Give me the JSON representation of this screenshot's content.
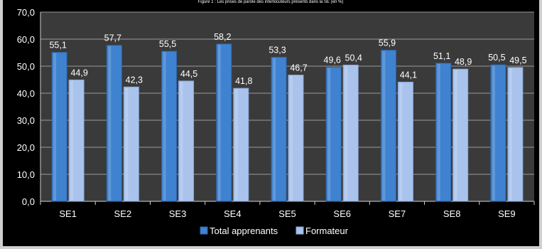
{
  "chart_data": {
    "type": "bar",
    "title": "Figure 1 : Les prises de parole des interlocuteurs présents dans la SE (en %)",
    "categories": [
      "SE1",
      "SE2",
      "SE3",
      "SE4",
      "SE5",
      "SE6",
      "SE7",
      "SE8",
      "SE9"
    ],
    "series": [
      {
        "name": "Total apprenants",
        "color": "#3f82d0",
        "values": [
          55.1,
          57.7,
          55.5,
          58.2,
          53.3,
          49.6,
          55.9,
          51.1,
          50.5
        ],
        "labels": [
          "55,1",
          "57,7",
          "55,5",
          "58,2",
          "53,3",
          "49,6",
          "55,9",
          "51,1",
          "50,5"
        ]
      },
      {
        "name": "Formateur",
        "color": "#a9c3ec",
        "values": [
          44.9,
          42.3,
          44.5,
          41.8,
          46.7,
          50.4,
          44.1,
          48.9,
          49.5
        ],
        "labels": [
          "44,9",
          "42,3",
          "44,5",
          "41,8",
          "46,7",
          "50,4",
          "44,1",
          "48,9",
          "49,5"
        ]
      }
    ],
    "xlabel": "",
    "ylabel": "",
    "ylim": [
      0,
      70
    ],
    "yticks": [
      "0,0",
      "10,0",
      "20,0",
      "30,0",
      "40,0",
      "50,0",
      "60,0",
      "70,0"
    ],
    "grid": true,
    "legend_position": "bottom",
    "colors": {
      "background": "#000000",
      "plot_area": "#3a3a3a",
      "grid": "#9a9a9a",
      "text": "#ffffff"
    }
  }
}
